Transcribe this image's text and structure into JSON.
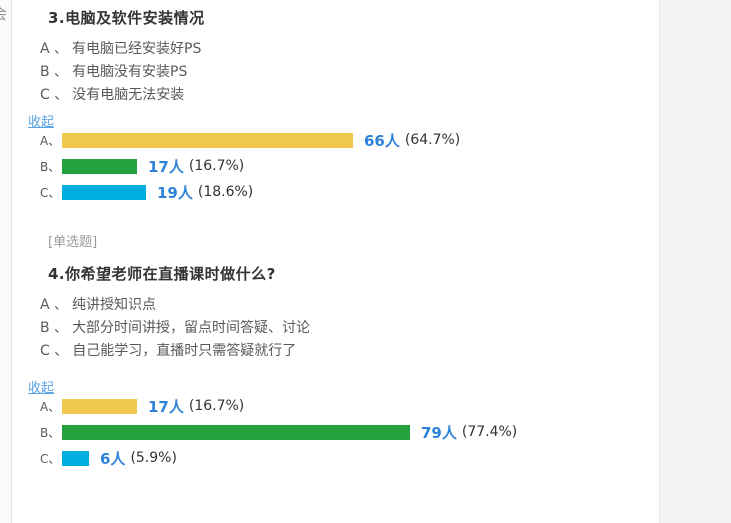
{
  "colors": {
    "bar_yellow": "#f0c84e",
    "bar_green": "#22a13c",
    "bar_cyan": "#00aee0",
    "count_blue": "#2e81d9",
    "link_blue": "#58a3e2",
    "title_text": "#333333",
    "option_text": "#595959",
    "badge_text": "#9b9b9d"
  },
  "edge_glyph": "会",
  "questions": [
    {
      "title": "3.电脑及软件安装情况",
      "badge": "",
      "options": [
        {
          "label": "A 、",
          "text": "有电脑已经安装好PS"
        },
        {
          "label": "B 、",
          "text": "有电脑没有安装PS"
        },
        {
          "label": "C 、",
          "text": "没有电脑无法安装"
        }
      ],
      "collapse_label": "收起",
      "chart": {
        "type": "bar",
        "unit": "人",
        "rows": [
          {
            "label": "A、",
            "count": 66,
            "count_label": "66人",
            "percent": 64.7,
            "percent_label": "(64.7%)",
            "color": "#f0c84e"
          },
          {
            "label": "B、",
            "count": 17,
            "count_label": "17人",
            "percent": 16.7,
            "percent_label": "(16.7%)",
            "color": "#22a13c"
          },
          {
            "label": "C、",
            "count": 19,
            "count_label": "19人",
            "percent": 18.6,
            "percent_label": "(18.6%)",
            "color": "#00aee0"
          }
        ]
      }
    },
    {
      "title": "4.你希望老师在直播课时做什么?",
      "badge": "[单选题]",
      "options": [
        {
          "label": "A 、",
          "text": "纯讲授知识点"
        },
        {
          "label": "B 、",
          "text": "大部分时间讲授，留点时间答疑、讨论"
        },
        {
          "label": "C 、",
          "text": "自己能学习，直播时只需答疑就行了"
        }
      ],
      "collapse_label": "收起",
      "chart": {
        "type": "bar",
        "unit": "人",
        "rows": [
          {
            "label": "A、",
            "count": 17,
            "count_label": "17人",
            "percent": 16.7,
            "percent_label": "(16.7%)",
            "color": "#f0c84e"
          },
          {
            "label": "B、",
            "count": 79,
            "count_label": "79人",
            "percent": 77.4,
            "percent_label": "(77.4%)",
            "color": "#22a13c"
          },
          {
            "label": "C、",
            "count": 6,
            "count_label": "6人",
            "percent": 5.9,
            "percent_label": "(5.9%)",
            "color": "#00aee0"
          }
        ]
      }
    }
  ]
}
